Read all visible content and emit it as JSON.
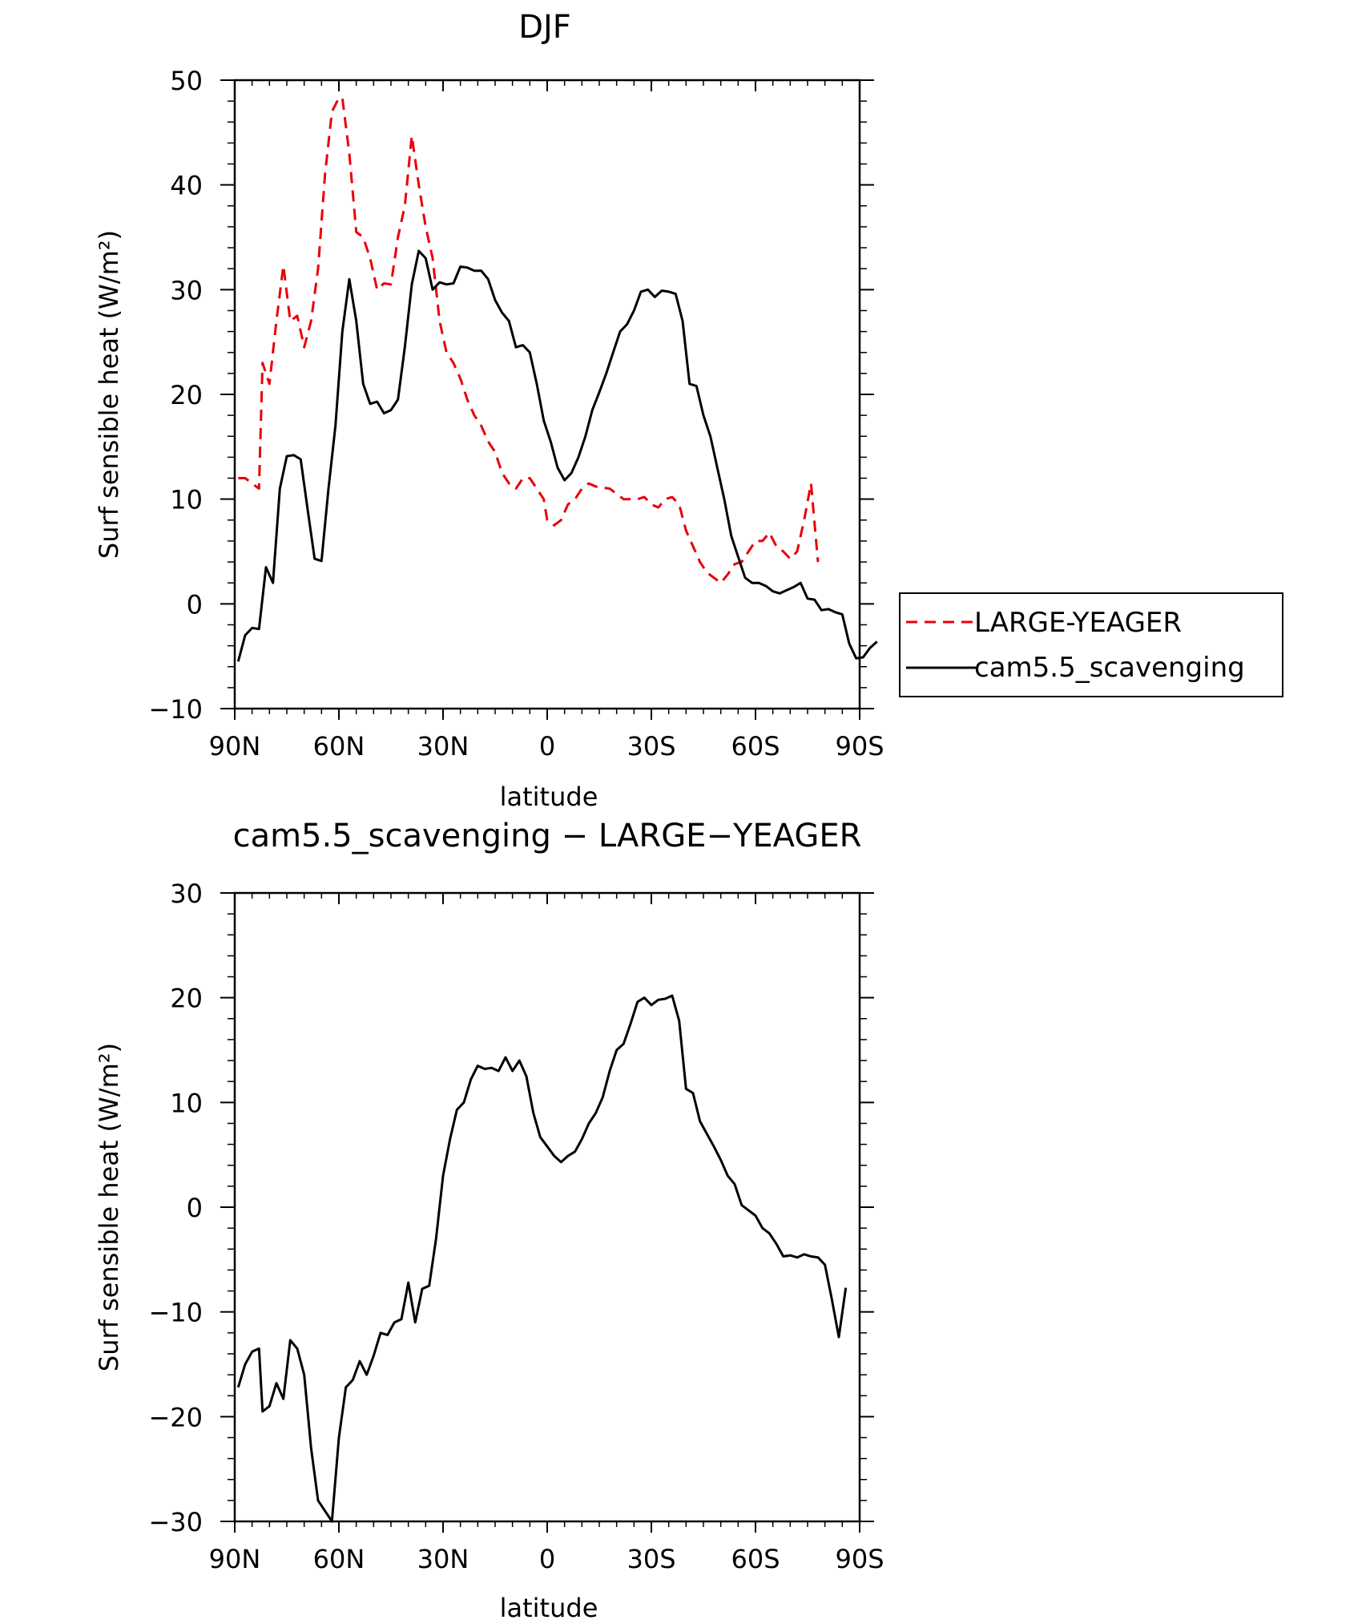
{
  "chart_data": [
    {
      "type": "line",
      "title": "DJF",
      "xlabel": "latitude",
      "ylabel": "Surf sensible heat (W/m²)",
      "xlim": [
        90,
        -90
      ],
      "ylim": [
        -10,
        50
      ],
      "x_ticks": [
        {
          "value": 90,
          "label": "90N"
        },
        {
          "value": 60,
          "label": "60N"
        },
        {
          "value": 30,
          "label": "30N"
        },
        {
          "value": 0,
          "label": "0"
        },
        {
          "value": -30,
          "label": "30S"
        },
        {
          "value": -60,
          "label": "60S"
        },
        {
          "value": -90,
          "label": "90S"
        }
      ],
      "y_ticks": [
        50,
        40,
        30,
        20,
        10,
        0,
        -10
      ],
      "legend": "right",
      "series": [
        {
          "name": "LARGE-YEAGER",
          "color": "#e8000b",
          "dash": "dashed",
          "points": [
            [
              89,
              12
            ],
            [
              87,
              12
            ],
            [
              85,
              11.5
            ],
            [
              83,
              11
            ],
            [
              82,
              23
            ],
            [
              80,
              21
            ],
            [
              78,
              27
            ],
            [
              76,
              32.3
            ],
            [
              74,
              27
            ],
            [
              72,
              27.5
            ],
            [
              70,
              24.5
            ],
            [
              68,
              27
            ],
            [
              66,
              32
            ],
            [
              64,
              41
            ],
            [
              62,
              47
            ],
            [
              60,
              48.3
            ],
            [
              59,
              48.3
            ],
            [
              57,
              43
            ],
            [
              55,
              35.5
            ],
            [
              53,
              35
            ],
            [
              51,
              33
            ],
            [
              49,
              30
            ],
            [
              47,
              30.6
            ],
            [
              45,
              30.5
            ],
            [
              43,
              35
            ],
            [
              41,
              38
            ],
            [
              39,
              44.7
            ],
            [
              37,
              40
            ],
            [
              35,
              36
            ],
            [
              33,
              33
            ],
            [
              31,
              27
            ],
            [
              29,
              24
            ],
            [
              27,
              23
            ],
            [
              25,
              21.5
            ],
            [
              23,
              19.5
            ],
            [
              21,
              18
            ],
            [
              19,
              17
            ],
            [
              17,
              15.5
            ],
            [
              15,
              14.5
            ],
            [
              13,
              12.5
            ],
            [
              11,
              11.5
            ],
            [
              9,
              11
            ],
            [
              7,
              12
            ],
            [
              5,
              12
            ],
            [
              3,
              11
            ],
            [
              1,
              10
            ],
            [
              0,
              8
            ],
            [
              -2,
              7.5
            ],
            [
              -4,
              8
            ],
            [
              -6,
              9.5
            ],
            [
              -8,
              10
            ],
            [
              -10,
              11
            ],
            [
              -12,
              11.5
            ],
            [
              -14,
              11.2
            ],
            [
              -18,
              11
            ],
            [
              -20,
              10.5
            ],
            [
              -22,
              10
            ],
            [
              -26,
              10
            ],
            [
              -28,
              10.2
            ],
            [
              -30,
              9.5
            ],
            [
              -32,
              9.2
            ],
            [
              -34,
              10
            ],
            [
              -36,
              10.2
            ],
            [
              -38,
              9.5
            ],
            [
              -40,
              7
            ],
            [
              -42,
              5.5
            ],
            [
              -44,
              4
            ],
            [
              -46,
              3
            ],
            [
              -48,
              2.5
            ],
            [
              -50,
              2
            ],
            [
              -52,
              2.8
            ],
            [
              -54,
              3.8
            ],
            [
              -56,
              4
            ],
            [
              -58,
              5
            ],
            [
              -60,
              6
            ],
            [
              -62,
              6
            ],
            [
              -64,
              6.8
            ],
            [
              -66,
              5.5
            ],
            [
              -68,
              5
            ],
            [
              -70,
              4.3
            ],
            [
              -72,
              5
            ],
            [
              -74,
              8
            ],
            [
              -76,
              11.5
            ],
            [
              -78,
              4
            ]
          ]
        },
        {
          "name": "cam5.5_scavenging",
          "color": "#000000",
          "dash": "solid",
          "points": [
            [
              89,
              -5.5
            ],
            [
              87,
              -3
            ],
            [
              85,
              -2.3
            ],
            [
              83,
              -2.4
            ],
            [
              81,
              3.5
            ],
            [
              79,
              2
            ],
            [
              77,
              11
            ],
            [
              75,
              14.1
            ],
            [
              73,
              14.2
            ],
            [
              71,
              13.8
            ],
            [
              69,
              9
            ],
            [
              67,
              4.3
            ],
            [
              65,
              4.1
            ],
            [
              63,
              11
            ],
            [
              61,
              17
            ],
            [
              59,
              26
            ],
            [
              57,
              31
            ],
            [
              55,
              27
            ],
            [
              53,
              21
            ],
            [
              51,
              19.1
            ],
            [
              49,
              19.3
            ],
            [
              47,
              18.2
            ],
            [
              45,
              18.5
            ],
            [
              43,
              19.5
            ],
            [
              41,
              24.5
            ],
            [
              39,
              30.5
            ],
            [
              37,
              33.7
            ],
            [
              35,
              33
            ],
            [
              33,
              30
            ],
            [
              31,
              30.7
            ],
            [
              29,
              30.5
            ],
            [
              27,
              30.6
            ],
            [
              25,
              32.2
            ],
            [
              23,
              32.1
            ],
            [
              21,
              31.8
            ],
            [
              19,
              31.8
            ],
            [
              17,
              31
            ],
            [
              15,
              29
            ],
            [
              13,
              27.8
            ],
            [
              11,
              27
            ],
            [
              9,
              24.5
            ],
            [
              7,
              24.7
            ],
            [
              5,
              24
            ],
            [
              3,
              21
            ],
            [
              1,
              17.5
            ],
            [
              -1,
              15.5
            ],
            [
              -3,
              13
            ],
            [
              -5,
              11.8
            ],
            [
              -7,
              12.5
            ],
            [
              -9,
              14
            ],
            [
              -11,
              16
            ],
            [
              -13,
              18.5
            ],
            [
              -15,
              20.2
            ],
            [
              -17,
              22
            ],
            [
              -19,
              24
            ],
            [
              -21,
              26
            ],
            [
              -23,
              26.7
            ],
            [
              -25,
              28
            ],
            [
              -27,
              29.8
            ],
            [
              -29,
              30
            ],
            [
              -31,
              29.3
            ],
            [
              -33,
              29.9
            ],
            [
              -35,
              29.8
            ],
            [
              -37,
              29.6
            ],
            [
              -39,
              27
            ],
            [
              -41,
              21
            ],
            [
              -43,
              20.8
            ],
            [
              -45,
              18
            ],
            [
              -47,
              16
            ],
            [
              -49,
              13
            ],
            [
              -51,
              10
            ],
            [
              -53,
              6.5
            ],
            [
              -55,
              4.5
            ],
            [
              -57,
              2.5
            ],
            [
              -59,
              2
            ],
            [
              -61,
              2
            ],
            [
              -63,
              1.7
            ],
            [
              -65,
              1.2
            ],
            [
              -67,
              1
            ],
            [
              -69,
              1.3
            ],
            [
              -71,
              1.6
            ],
            [
              -73,
              2
            ],
            [
              -75,
              0.5
            ],
            [
              -77,
              0.4
            ],
            [
              -79,
              -0.6
            ],
            [
              -81,
              -0.5
            ],
            [
              -83,
              -0.8
            ],
            [
              -85,
              -1
            ],
            [
              -87,
              -3.8
            ],
            [
              -89,
              -5.2
            ],
            [
              -91,
              -5.1
            ],
            [
              -93,
              -4.2
            ],
            [
              -95,
              -3.6
            ]
          ]
        }
      ]
    },
    {
      "type": "line",
      "title": "cam5.5_scavenging − LARGE−YEAGER",
      "xlabel": "latitude",
      "ylabel": "Surf sensible heat (W/m²)",
      "xlim": [
        90,
        -90
      ],
      "ylim": [
        -30,
        30
      ],
      "x_ticks": [
        {
          "value": 90,
          "label": "90N"
        },
        {
          "value": 60,
          "label": "60N"
        },
        {
          "value": 30,
          "label": "30N"
        },
        {
          "value": 0,
          "label": "0"
        },
        {
          "value": -30,
          "label": "30S"
        },
        {
          "value": -60,
          "label": "60S"
        },
        {
          "value": -90,
          "label": "90S"
        }
      ],
      "y_ticks": [
        30,
        20,
        10,
        0,
        -10,
        -20,
        -30
      ],
      "series": [
        {
          "name": "",
          "color": "#000000",
          "dash": "solid",
          "points": [
            [
              89,
              -17.2
            ],
            [
              87,
              -15
            ],
            [
              85,
              -13.8
            ],
            [
              83,
              -13.5
            ],
            [
              82,
              -19.5
            ],
            [
              80,
              -19
            ],
            [
              78,
              -16.8
            ],
            [
              76,
              -18.3
            ],
            [
              74,
              -12.7
            ],
            [
              72,
              -13.5
            ],
            [
              70,
              -16
            ],
            [
              68,
              -23
            ],
            [
              66,
              -28
            ],
            [
              64,
              -29
            ],
            [
              62,
              -30
            ],
            [
              60,
              -22
            ],
            [
              58,
              -17.2
            ],
            [
              56,
              -16.5
            ],
            [
              54,
              -14.7
            ],
            [
              52,
              -16
            ],
            [
              50,
              -14.2
            ],
            [
              48,
              -12
            ],
            [
              46,
              -12.2
            ],
            [
              44,
              -11
            ],
            [
              42,
              -10.7
            ],
            [
              40,
              -7.2
            ],
            [
              38,
              -11
            ],
            [
              36,
              -7.8
            ],
            [
              34,
              -7.5
            ],
            [
              32,
              -3
            ],
            [
              30,
              3
            ],
            [
              28,
              6.5
            ],
            [
              26,
              9.3
            ],
            [
              24,
              10
            ],
            [
              22,
              12.2
            ],
            [
              20,
              13.5
            ],
            [
              18,
              13.2
            ],
            [
              16,
              13.3
            ],
            [
              14,
              13
            ],
            [
              12,
              14.3
            ],
            [
              10,
              13
            ],
            [
              8,
              14
            ],
            [
              6,
              12.5
            ],
            [
              4,
              9
            ],
            [
              2,
              6.7
            ],
            [
              0,
              5.8
            ],
            [
              -2,
              4.9
            ],
            [
              -4,
              4.3
            ],
            [
              -6,
              4.9
            ],
            [
              -8,
              5.3
            ],
            [
              -10,
              6.5
            ],
            [
              -12,
              8
            ],
            [
              -14,
              9
            ],
            [
              -16,
              10.5
            ],
            [
              -18,
              13
            ],
            [
              -20,
              15
            ],
            [
              -22,
              15.6
            ],
            [
              -24,
              17.5
            ],
            [
              -26,
              19.6
            ],
            [
              -28,
              20
            ],
            [
              -30,
              19.3
            ],
            [
              -32,
              19.8
            ],
            [
              -34,
              19.9
            ],
            [
              -36,
              20.2
            ],
            [
              -38,
              17.8
            ],
            [
              -40,
              11.3
            ],
            [
              -42,
              10.9
            ],
            [
              -44,
              8.2
            ],
            [
              -46,
              7
            ],
            [
              -48,
              5.8
            ],
            [
              -50,
              4.5
            ],
            [
              -52,
              3
            ],
            [
              -54,
              2.2
            ],
            [
              -56,
              0.2
            ],
            [
              -58,
              -0.3
            ],
            [
              -60,
              -0.8
            ],
            [
              -62,
              -2
            ],
            [
              -64,
              -2.5
            ],
            [
              -66,
              -3.5
            ],
            [
              -68,
              -4.7
            ],
            [
              -70,
              -4.6
            ],
            [
              -72,
              -4.8
            ],
            [
              -74,
              -4.5
            ],
            [
              -76,
              -4.7
            ],
            [
              -78,
              -4.8
            ],
            [
              -80,
              -5.5
            ],
            [
              -82,
              -8.8
            ],
            [
              -84,
              -12.4
            ],
            [
              -86,
              -7.7
            ]
          ]
        }
      ]
    }
  ]
}
